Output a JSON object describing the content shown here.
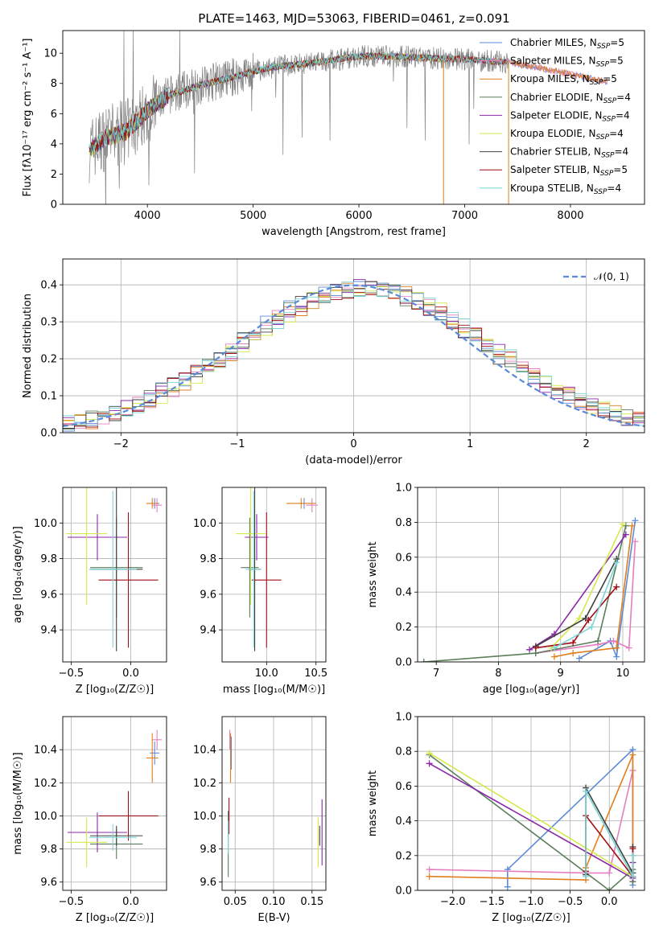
{
  "figure": {
    "title": "PLATE=1463, MJD=53063, FIBERID=0461, z=0.091"
  },
  "colors": {
    "chabrier_miles": "#5b8bd8",
    "salpeter_miles": "#e57ec0",
    "kroupa_miles": "#e07f1d",
    "chabrier_elodie": "#5a7d5a",
    "salpeter_elodie": "#8b27a8",
    "kroupa_elodie": "#d6e84c",
    "chabrier_stelib": "#404040",
    "salpeter_stelib": "#a00f17",
    "kroupa_stelib": "#7ad6d6",
    "data": "#808080",
    "normal": "#5b8bd8"
  },
  "chart_data": [
    {
      "id": "spectrum",
      "type": "line",
      "title": "PLATE=1463, MJD=53063, FIBERID=0461, z=0.091",
      "xlabel": "wavelength [Angstrom, rest frame]",
      "ylabel": "Flux [fλ10⁻¹⁷ erg cm⁻² s⁻¹ A⁻¹]",
      "xlim": [
        3200,
        8700
      ],
      "ylim": [
        0,
        11.5
      ],
      "xticks": [
        4000,
        5000,
        6000,
        7000,
        8000
      ],
      "yticks": [
        0,
        2,
        4,
        6,
        8,
        10
      ],
      "legend": [
        {
          "key": "chabrier_miles",
          "label": "Chabrier MILES, N",
          "sub": "SSP",
          "tail": "=5"
        },
        {
          "key": "salpeter_miles",
          "label": "Salpeter MILES, N",
          "sub": "SSP",
          "tail": "=5"
        },
        {
          "key": "kroupa_miles",
          "label": "Kroupa MILES, N",
          "sub": "SSP",
          "tail": "=5"
        },
        {
          "key": "chabrier_elodie",
          "label": "Chabrier ELODIE, N",
          "sub": "SSP",
          "tail": "=4"
        },
        {
          "key": "salpeter_elodie",
          "label": "Salpeter ELODIE, N",
          "sub": "SSP",
          "tail": "=4"
        },
        {
          "key": "kroupa_elodie",
          "label": "Kroupa ELODIE, N",
          "sub": "SSP",
          "tail": "=4"
        },
        {
          "key": "chabrier_stelib",
          "label": "Chabrier STELIB, N",
          "sub": "SSP",
          "tail": "=4"
        },
        {
          "key": "salpeter_stelib",
          "label": "Salpeter STELIB, N",
          "sub": "SSP",
          "tail": "=5"
        },
        {
          "key": "kroupa_stelib",
          "label": "Kroupa STELIB, N",
          "sub": "SSP",
          "tail": "=4"
        }
      ],
      "continuum": {
        "wavelength": [
          3450,
          3600,
          3800,
          4000,
          4200,
          4500,
          4800,
          5000,
          5200,
          5500,
          5800,
          6000,
          6300,
          6600,
          7000,
          7400,
          7800,
          8200,
          8350
        ],
        "flux": [
          3.6,
          4.4,
          4.8,
          6.2,
          7.2,
          7.9,
          8.4,
          8.8,
          9.1,
          9.3,
          9.6,
          9.8,
          9.8,
          9.7,
          9.6,
          9.4,
          8.9,
          8.3,
          8.1
        ]
      }
    },
    {
      "id": "residuals",
      "type": "histogram",
      "xlabel": "(data-model)/error",
      "ylabel": "Normed distribution",
      "xlim": [
        -2.5,
        2.5
      ],
      "ylim": [
        0,
        0.47
      ],
      "xticks": [
        -2,
        -1,
        0,
        1,
        2
      ],
      "yticks": [
        0.0,
        0.1,
        0.2,
        0.3,
        0.4
      ],
      "legend_label": "𝒩(0, 1)",
      "normal": {
        "mean": 0,
        "sigma": 1
      }
    },
    {
      "id": "z_age",
      "type": "errorbar",
      "xlabel": "Z [log₁₀(Z/Z☉)]",
      "ylabel": "age  [log₁₀(age/yr)]",
      "xlim": [
        -0.57,
        0.3
      ],
      "ylim": [
        9.22,
        10.2
      ],
      "xticks": [
        -0.5,
        0.0
      ],
      "yticks": [
        9.4,
        9.6,
        9.8,
        10.0
      ],
      "points": [
        {
          "c": "chabrier_miles",
          "x": 0.2,
          "xe": 0.04,
          "y": 10.11,
          "ye": 0.03
        },
        {
          "c": "salpeter_miles",
          "x": 0.22,
          "xe": 0.04,
          "y": 10.1,
          "ye": 0.04
        },
        {
          "c": "kroupa_miles",
          "x": 0.18,
          "xe": 0.05,
          "y": 10.11,
          "ye": 0.03
        },
        {
          "c": "chabrier_elodie",
          "x": -0.12,
          "xe": 0.22,
          "y": 9.75,
          "ye": 0.28
        },
        {
          "c": "salpeter_elodie",
          "x": -0.28,
          "xe": 0.25,
          "y": 9.92,
          "ye": 0.13
        },
        {
          "c": "kroupa_elodie",
          "x": -0.37,
          "xe": 0.17,
          "y": 9.94,
          "ye": 0.4
        },
        {
          "c": "chabrier_stelib",
          "x": -0.12,
          "xe": 0.22,
          "y": 9.74,
          "ye": 0.46
        },
        {
          "c": "salpeter_stelib",
          "x": -0.02,
          "xe": 0.25,
          "y": 9.68,
          "ye": 0.38
        },
        {
          "c": "kroupa_stelib",
          "x": -0.15,
          "xe": 0.2,
          "y": 9.74,
          "ye": 0.44
        }
      ]
    },
    {
      "id": "mass_age",
      "type": "errorbar",
      "xlabel": "mass [log₁₀(M/M☉)]",
      "ylabel": "",
      "xlim": [
        9.55,
        10.6
      ],
      "ylim": [
        9.22,
        10.2
      ],
      "xticks": [
        10.0,
        10.5
      ],
      "yticks": [
        9.4,
        9.6,
        9.8,
        10.0
      ],
      "points": [
        {
          "c": "chabrier_miles",
          "x": 10.38,
          "xe": 0.07,
          "y": 10.11,
          "ye": 0.03
        },
        {
          "c": "salpeter_miles",
          "x": 10.46,
          "xe": 0.06,
          "y": 10.1,
          "ye": 0.04
        },
        {
          "c": "kroupa_miles",
          "x": 10.35,
          "xe": 0.15,
          "y": 10.11,
          "ye": 0.03
        },
        {
          "c": "chabrier_elodie",
          "x": 9.83,
          "xe": 0.09,
          "y": 9.75,
          "ye": 0.28
        },
        {
          "c": "salpeter_elodie",
          "x": 9.9,
          "xe": 0.12,
          "y": 9.92,
          "ye": 0.13
        },
        {
          "c": "kroupa_elodie",
          "x": 9.84,
          "xe": 0.15,
          "y": 9.94,
          "ye": 0.4
        },
        {
          "c": "chabrier_stelib",
          "x": 9.88,
          "xe": 0.06,
          "y": 9.74,
          "ye": 0.46
        },
        {
          "c": "salpeter_stelib",
          "x": 10.0,
          "xe": 0.15,
          "y": 9.68,
          "ye": 0.38
        },
        {
          "c": "kroupa_stelib",
          "x": 9.87,
          "xe": 0.08,
          "y": 9.74,
          "ye": 0.44
        }
      ]
    },
    {
      "id": "age_weight",
      "type": "line",
      "xlabel": "age  [log₁₀(age/yr)]",
      "ylabel": "mass weight",
      "xlim": [
        6.7,
        10.35
      ],
      "ylim": [
        0,
        1.0
      ],
      "xticks": [
        7,
        8,
        9,
        10
      ],
      "yticks": [
        0.0,
        0.2,
        0.4,
        0.6,
        0.8,
        1.0
      ],
      "series": [
        {
          "c": "chabrier_miles",
          "x": [
            9.3,
            9.8,
            9.9,
            10.2
          ],
          "y": [
            0.02,
            0.12,
            0.03,
            0.81
          ]
        },
        {
          "c": "salpeter_miles",
          "x": [
            8.6,
            9.6,
            9.85,
            10.1,
            10.2
          ],
          "y": [
            0.05,
            0.1,
            0.12,
            0.08,
            0.69
          ]
        },
        {
          "c": "kroupa_miles",
          "x": [
            8.9,
            9.2,
            9.9,
            10.15
          ],
          "y": [
            0.03,
            0.05,
            0.08,
            0.78
          ]
        },
        {
          "c": "chabrier_elodie",
          "x": [
            6.8,
            8.6,
            9.6,
            10.05
          ],
          "y": [
            0.0,
            0.05,
            0.12,
            0.78
          ]
        },
        {
          "c": "salpeter_elodie",
          "x": [
            8.5,
            8.9,
            10.05
          ],
          "y": [
            0.07,
            0.16,
            0.73
          ]
        },
        {
          "c": "kroupa_elodie",
          "x": [
            8.85,
            9.3,
            10.0
          ],
          "y": [
            0.08,
            0.25,
            0.79
          ]
        },
        {
          "c": "chabrier_stelib",
          "x": [
            8.6,
            9.4,
            9.9
          ],
          "y": [
            0.09,
            0.25,
            0.59
          ]
        },
        {
          "c": "salpeter_stelib",
          "x": [
            8.6,
            9.2,
            9.45,
            9.9
          ],
          "y": [
            0.08,
            0.11,
            0.24,
            0.43
          ]
        },
        {
          "c": "kroupa_stelib",
          "x": [
            8.9,
            9.5,
            9.9
          ],
          "y": [
            0.08,
            0.2,
            0.57
          ]
        }
      ]
    },
    {
      "id": "z_mass",
      "type": "errorbar",
      "xlabel": "Z [log₁₀(Z/Z☉)]",
      "ylabel": "mass [log₁₀(M/M☉)]",
      "xlim": [
        -0.57,
        0.3
      ],
      "ylim": [
        9.55,
        10.6
      ],
      "xticks": [
        -0.5,
        0.0
      ],
      "yticks": [
        9.6,
        9.8,
        10.0,
        10.2,
        10.4
      ],
      "points": [
        {
          "c": "chabrier_miles",
          "x": 0.2,
          "xe": 0.04,
          "y": 10.38,
          "ye": 0.07
        },
        {
          "c": "salpeter_miles",
          "x": 0.22,
          "xe": 0.04,
          "y": 10.46,
          "ye": 0.06
        },
        {
          "c": "kroupa_miles",
          "x": 0.18,
          "xe": 0.05,
          "y": 10.35,
          "ye": 0.15
        },
        {
          "c": "chabrier_elodie",
          "x": -0.12,
          "xe": 0.22,
          "y": 9.83,
          "ye": 0.09
        },
        {
          "c": "salpeter_elodie",
          "x": -0.28,
          "xe": 0.25,
          "y": 9.9,
          "ye": 0.12
        },
        {
          "c": "kroupa_elodie",
          "x": -0.37,
          "xe": 0.17,
          "y": 9.84,
          "ye": 0.15
        },
        {
          "c": "chabrier_stelib",
          "x": -0.12,
          "xe": 0.22,
          "y": 9.88,
          "ye": 0.06
        },
        {
          "c": "salpeter_stelib",
          "x": -0.02,
          "xe": 0.25,
          "y": 10.0,
          "ye": 0.15
        },
        {
          "c": "kroupa_stelib",
          "x": -0.15,
          "xe": 0.2,
          "y": 9.87,
          "ye": 0.08
        }
      ]
    },
    {
      "id": "ebv_mass",
      "type": "errorbar",
      "xlabel": "E(B-V)",
      "ylabel": "",
      "xlim": [
        0.033,
        0.168
      ],
      "ylim": [
        9.55,
        10.6
      ],
      "xticks": [
        0.05,
        0.1,
        0.15
      ],
      "yticks": [
        9.6,
        9.8,
        10.0,
        10.2,
        10.4
      ],
      "points": [
        {
          "c": "chabrier_miles",
          "x": 0.045,
          "xe": 0,
          "y": 10.38,
          "ye": 0.1
        },
        {
          "c": "salpeter_miles",
          "x": 0.043,
          "xe": 0,
          "y": 10.46,
          "ye": 0.06
        },
        {
          "c": "kroupa_miles",
          "x": 0.044,
          "xe": 0,
          "y": 10.35,
          "ye": 0.15
        },
        {
          "c": "chabrier_elodie",
          "x": 0.041,
          "xe": 0,
          "y": 9.83,
          "ye": 0.2
        },
        {
          "c": "salpeter_elodie",
          "x": 0.163,
          "xe": 0,
          "y": 9.9,
          "ye": 0.2
        },
        {
          "c": "kroupa_elodie",
          "x": 0.158,
          "xe": 0,
          "y": 9.84,
          "ye": 0.15
        },
        {
          "c": "chabrier_stelib",
          "x": 0.16,
          "xe": 0,
          "y": 9.88,
          "ye": 0.06
        },
        {
          "c": "salpeter_stelib",
          "x": 0.042,
          "xe": 0,
          "y": 10.0,
          "ye": 0.11
        },
        {
          "c": "kroupa_stelib",
          "x": 0.041,
          "xe": 0,
          "y": 9.87,
          "ye": 0.1
        }
      ]
    },
    {
      "id": "z_weight",
      "type": "line",
      "xlabel": "Z [log₁₀(Z/Z☉)]",
      "ylabel": "mass weight",
      "xlim": [
        -2.45,
        0.45
      ],
      "ylim": [
        0,
        1.0
      ],
      "xticks": [
        -2.0,
        -1.5,
        -1.0,
        -0.5,
        0.0
      ],
      "yticks": [
        0.0,
        0.2,
        0.4,
        0.6,
        0.8,
        1.0
      ],
      "series": [
        {
          "c": "chabrier_miles",
          "x": [
            -1.3,
            -1.3,
            0.3,
            0.3
          ],
          "y": [
            0.02,
            0.12,
            0.81,
            0.03
          ]
        },
        {
          "c": "salpeter_miles",
          "x": [
            -2.3,
            -0.3,
            0.0,
            0.3,
            0.3
          ],
          "y": [
            0.12,
            0.1,
            0.1,
            0.69,
            0.05
          ]
        },
        {
          "c": "kroupa_miles",
          "x": [
            -2.3,
            -0.3,
            -0.3,
            0.3,
            0.3
          ],
          "y": [
            0.08,
            0.06,
            0.13,
            0.78,
            0.08
          ]
        },
        {
          "c": "chabrier_elodie",
          "x": [
            -2.3,
            0.0,
            0.3,
            0.3
          ],
          "y": [
            0.78,
            0.0,
            0.12,
            0.05
          ]
        },
        {
          "c": "salpeter_elodie",
          "x": [
            -2.3,
            0.3,
            0.3
          ],
          "y": [
            0.73,
            0.07,
            0.16
          ]
        },
        {
          "c": "kroupa_elodie",
          "x": [
            -2.3,
            0.3,
            0.3
          ],
          "y": [
            0.79,
            0.08,
            0.25
          ]
        },
        {
          "c": "chabrier_stelib",
          "x": [
            -0.3,
            -0.3,
            0.3,
            0.3
          ],
          "y": [
            0.09,
            0.59,
            0.1,
            0.25
          ]
        },
        {
          "c": "salpeter_stelib",
          "x": [
            -0.3,
            -0.3,
            0.3,
            0.3
          ],
          "y": [
            0.11,
            0.43,
            0.08,
            0.24
          ]
        },
        {
          "c": "kroupa_stelib",
          "x": [
            -0.3,
            -0.3,
            0.3,
            0.3
          ],
          "y": [
            0.08,
            0.57,
            0.08,
            0.2
          ]
        }
      ]
    }
  ]
}
